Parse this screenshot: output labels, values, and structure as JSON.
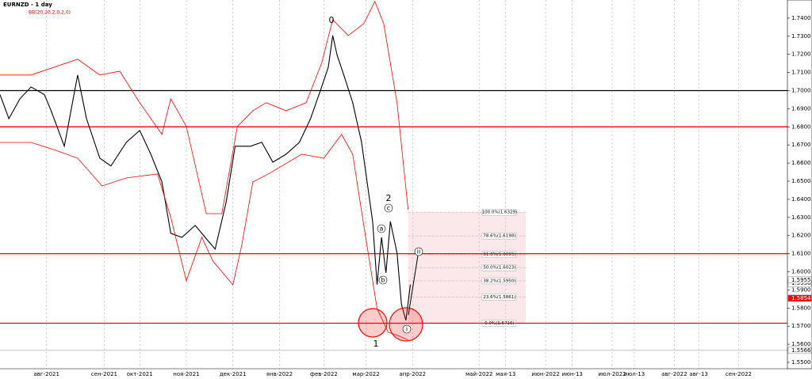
{
  "chart_data": {
    "type": "line",
    "title": "EURNZD - 1 day",
    "indicator": "BB(20,20,2,0,2,0)",
    "xlim": [
      0,
      355
    ],
    "ylim": [
      1.5465,
      1.75
    ],
    "xticks": [
      {
        "value": 21,
        "label": "авг-2021"
      },
      {
        "value": 47,
        "label": "сен-2021"
      },
      {
        "value": 63,
        "label": "окт-2021"
      },
      {
        "value": 84,
        "label": "ноя-2021"
      },
      {
        "value": 105,
        "label": "дек-2021"
      },
      {
        "value": 126,
        "label": "янв-2022"
      },
      {
        "value": 146,
        "label": "фев-2022"
      },
      {
        "value": 165,
        "label": "мар-2022"
      },
      {
        "value": 186,
        "label": "апр-2022"
      },
      {
        "value": 216,
        "label": "май-2022"
      },
      {
        "value": 228,
        "label": "мая-13"
      },
      {
        "value": 246,
        "label": "июн-2022"
      },
      {
        "value": 258,
        "label": "июн-13"
      },
      {
        "value": 276,
        "label": "июл-2022"
      },
      {
        "value": 286,
        "label": "июл-13"
      },
      {
        "value": 304,
        "label": "авг-2022"
      },
      {
        "value": 315,
        "label": "авг-13"
      },
      {
        "value": 333,
        "label": "сен-2022"
      }
    ],
    "yticks": [
      {
        "value": 1.55,
        "label": "1.5500"
      },
      {
        "value": 1.56,
        "label": "1.5600"
      },
      {
        "value": 1.57,
        "label": "1.5700"
      },
      {
        "value": 1.58,
        "label": "1.5800"
      },
      {
        "value": 1.59,
        "label": "1.5900"
      },
      {
        "value": 1.6,
        "label": "1.6000"
      },
      {
        "value": 1.61,
        "label": "1.6100"
      },
      {
        "value": 1.62,
        "label": "1.6200"
      },
      {
        "value": 1.63,
        "label": "1.6300"
      },
      {
        "value": 1.64,
        "label": "1.6400"
      },
      {
        "value": 1.65,
        "label": "1.6500"
      },
      {
        "value": 1.66,
        "label": "1.6600"
      },
      {
        "value": 1.67,
        "label": "1.6700"
      },
      {
        "value": 1.68,
        "label": "1.6800"
      },
      {
        "value": 1.69,
        "label": "1.6900"
      },
      {
        "value": 1.7,
        "label": "1.7000"
      },
      {
        "value": 1.71,
        "label": "1.7100"
      },
      {
        "value": 1.72,
        "label": "1.7200"
      },
      {
        "value": 1.73,
        "label": "1.7300"
      },
      {
        "value": 1.74,
        "label": "1.7400"
      }
    ],
    "series": [
      {
        "color": "#000000",
        "x": [
          0,
          4,
          9,
          14,
          20,
          23,
          29,
          35,
          39,
          45,
          50,
          57,
          63,
          68,
          73,
          77,
          82,
          88,
          94,
          97,
          102,
          106,
          113,
          118,
          123,
          129,
          135,
          140,
          145,
          148,
          150,
          152,
          155,
          159,
          163,
          165,
          168,
          170,
          172,
          174,
          176,
          179,
          181,
          183,
          185
        ],
        "values": [
          1.6978,
          1.6845,
          1.6955,
          1.702,
          1.6978,
          1.689,
          1.6693,
          1.7086,
          1.6845,
          1.6627,
          1.6584,
          1.6715,
          1.678,
          1.6649,
          1.6496,
          1.6212,
          1.619,
          1.6256,
          1.6168,
          1.6125,
          1.6387,
          1.6693,
          1.6693,
          1.6715,
          1.6605,
          1.6649,
          1.6715,
          1.6845,
          1.702,
          1.7129,
          1.7304,
          1.7195,
          1.7086,
          1.6934,
          1.6715,
          1.654,
          1.6278,
          1.5929,
          1.619,
          1.5994,
          1.6278,
          1.6103,
          1.5819,
          1.5732,
          1.5929
        ]
      },
      {
        "color": "#ff0000",
        "x": [
          0,
          14,
          35,
          45,
          54,
          63,
          73,
          77,
          84,
          93,
          100,
          107,
          114,
          120,
          129,
          138,
          145,
          150,
          157,
          164,
          169,
          173,
          179,
          184
        ],
        "values": [
          1.7086,
          1.7086,
          1.7173,
          1.7086,
          1.7107,
          1.6933,
          1.6758,
          1.6955,
          1.6802,
          1.6321,
          1.6321,
          1.6802,
          1.6889,
          1.6933,
          1.6889,
          1.6933,
          1.7151,
          1.7391,
          1.7304,
          1.7369,
          1.7492,
          1.7369,
          1.6933,
          1.6343
        ]
      },
      {
        "color": "#ff0000",
        "x": [
          0,
          14,
          25,
          35,
          46,
          57,
          71,
          77,
          84,
          91,
          96,
          105,
          109,
          114,
          121,
          136,
          146,
          154,
          159,
          164,
          170,
          175,
          180,
          184
        ],
        "values": [
          1.6714,
          1.6714,
          1.6671,
          1.6627,
          1.6474,
          1.6518,
          1.654,
          1.63,
          1.595,
          1.619,
          1.6059,
          1.5928,
          1.6147,
          1.6496,
          1.654,
          1.6649,
          1.6627,
          1.6758,
          1.6649,
          1.6256,
          1.5797,
          1.5666,
          1.5645,
          1.5623
        ]
      }
    ],
    "levels": [
      {
        "value": 1.7,
        "color": "#000000"
      },
      {
        "value": 1.68,
        "color": "#ff0000"
      },
      {
        "value": 1.61,
        "color": "#ff0000"
      },
      {
        "value": 1.5716,
        "color": "#ff0000"
      },
      {
        "value": 1.5566,
        "color": "#808080"
      }
    ],
    "fib_range": [
      184,
      237
    ],
    "fib_levels": [
      {
        "value": 1.6329,
        "label": "100.0%(1.6329)"
      },
      {
        "value": 1.6198,
        "label": "78.6%(1.6198)"
      },
      {
        "value": 1.6095,
        "label": "61.8%(1.6095)"
      },
      {
        "value": 1.6023,
        "label": "50.0%(1.6023)"
      },
      {
        "value": 1.595,
        "label": "38.2%(1.5950)"
      },
      {
        "value": 1.5861,
        "label": "23.6%(1.5861)"
      },
      {
        "value": 1.5716,
        "label": "0.0%(1.5716)"
      }
    ],
    "price_labels": [
      {
        "value": 1.5936,
        "color": "#ffffff"
      },
      {
        "value": 1.5955,
        "color": "#ffffff"
      },
      {
        "value": 1.5854,
        "color": "#ff0000"
      },
      {
        "value": 1.5566,
        "color": "#ffffff"
      }
    ],
    "waves": [
      "0",
      "1",
      "2",
      "a",
      "b",
      "c",
      "i",
      "ii"
    ]
  }
}
